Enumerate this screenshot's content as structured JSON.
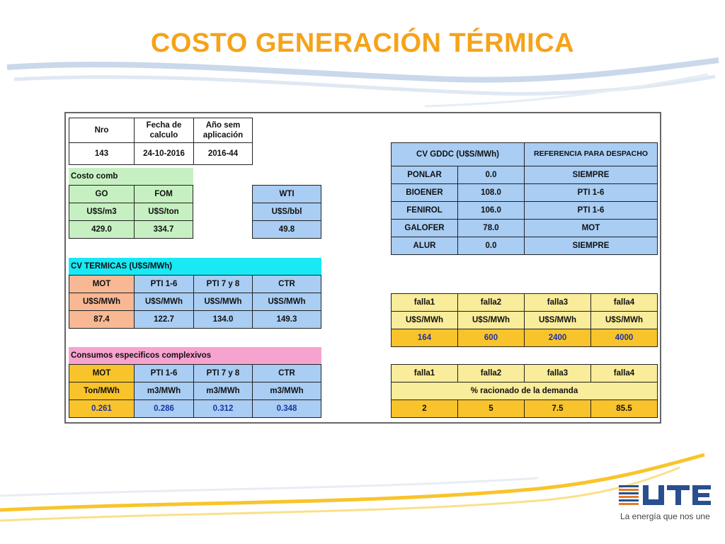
{
  "slide": {
    "title": "COSTO GENERACIÓN TÉRMICA",
    "brand_tagline": "La energía que nos une",
    "colors": {
      "title": "#f5a31a",
      "accent_line": "#f9c42b",
      "swoosh": "#c9d8ea"
    }
  },
  "header": {
    "labels": [
      "Nro",
      "Fecha de\ncalculo",
      "Año sem\naplicación"
    ],
    "values": [
      "143",
      "24-10-2016",
      "2016-44"
    ]
  },
  "costo_comb": {
    "title": "Costo comb",
    "headers": [
      "GO",
      "FOM"
    ],
    "units": [
      "U$S/m3",
      "U$S/ton"
    ],
    "values": [
      "429.0",
      "334.7"
    ]
  },
  "wti": {
    "header": "WTI",
    "unit": "U$S/bbl",
    "value": "49.8"
  },
  "cv_termicas": {
    "title": "CV TERMICAS (U$S/MWh)",
    "headers": [
      "MOT",
      "PTI 1-6",
      "PTI 7 y 8",
      "CTR"
    ],
    "units": [
      "U$S/MWh",
      "U$S/MWh",
      "U$S/MWh",
      "U$S/MWh"
    ],
    "values": [
      "87.4",
      "122.7",
      "134.0",
      "149.3"
    ]
  },
  "consumos": {
    "title": "Consumos especificos complexivos",
    "headers": [
      "MOT",
      "PTI 1-6",
      "PTI 7 y 8",
      "CTR"
    ],
    "units": [
      "Ton/MWh",
      "m3/MWh",
      "m3/MWh",
      "m3/MWh"
    ],
    "values": [
      "0.261",
      "0.286",
      "0.312",
      "0.348"
    ]
  },
  "cv_gddc": {
    "title": "CV GDDC (U$S/MWh)",
    "ref_title": "REFERENCIA PARA DESPACHO",
    "rows": [
      {
        "name": "PONLAR",
        "value": "0.0",
        "ref": "SIEMPRE"
      },
      {
        "name": "BIOENER",
        "value": "108.0",
        "ref": "PTI 1-6"
      },
      {
        "name": "FENIROL",
        "value": "106.0",
        "ref": "PTI 1-6"
      },
      {
        "name": "GALOFER",
        "value": "78.0",
        "ref": "MOT"
      },
      {
        "name": "ALUR",
        "value": "0.0",
        "ref": "SIEMPRE"
      }
    ]
  },
  "falla_cost": {
    "headers": [
      "falla1",
      "falla2",
      "falla3",
      "falla4"
    ],
    "units": [
      "U$S/MWh",
      "U$S/MWh",
      "U$S/MWh",
      "U$S/MWh"
    ],
    "values": [
      "164",
      "600",
      "2400",
      "4000"
    ]
  },
  "falla_pct": {
    "headers": [
      "falla1",
      "falla2",
      "falla3",
      "falla4"
    ],
    "caption": "% racionado de la demanda",
    "values": [
      "2",
      "5",
      "7.5",
      "85.5"
    ]
  }
}
